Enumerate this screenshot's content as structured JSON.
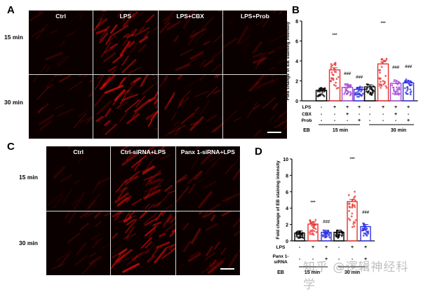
{
  "panels": {
    "A": {
      "letter": "A",
      "columns": [
        "Ctrl",
        "LPS",
        "LPS+CBX",
        "LPS+Prob"
      ],
      "rows": [
        "15 min",
        "30 min"
      ],
      "intensity": [
        [
          0.15,
          0.75,
          0.35,
          0.25
        ],
        [
          0.3,
          0.85,
          0.45,
          0.3
        ]
      ]
    },
    "B": {
      "letter": "B"
    },
    "C": {
      "letter": "C",
      "columns": [
        "Ctrl",
        "Ctrl-siRNA+LPS",
        "Panx 1-siRNA+LPS"
      ],
      "rows": [
        "15 min",
        "30 min"
      ],
      "intensity": [
        [
          0.15,
          0.7,
          0.3
        ],
        [
          0.25,
          0.9,
          0.45
        ]
      ]
    },
    "D": {
      "letter": "D"
    }
  },
  "watermark": "知乎 @逻辑神经科学",
  "chart_data": [
    {
      "panel": "B",
      "type": "bar",
      "ylabel": "Fold change of EB staining intensity",
      "ylim": [
        0,
        8
      ],
      "yticks": [
        0,
        2,
        4,
        6,
        8
      ],
      "categories": [
        "15 min Ctrl",
        "15 min LPS",
        "15 min LPS+CBX",
        "15 min LPS+Prob",
        "30 min Ctrl",
        "30 min LPS",
        "30 min LPS+CBX",
        "30 min LPS+Prob"
      ],
      "values": [
        1.05,
        3.1,
        1.35,
        1.15,
        1.4,
        3.7,
        1.75,
        1.8
      ],
      "colors": [
        "#000000",
        "#e8302e",
        "#a348d6",
        "#2f2fe0",
        "#000000",
        "#e8302e",
        "#a348d6",
        "#2f2fe0"
      ],
      "annotations": [
        "",
        "***",
        "###",
        "###",
        "",
        "***",
        "###",
        "###"
      ],
      "conditions": {
        "LPS": [
          "-",
          "+",
          "+",
          "+",
          "-",
          "+",
          "+",
          "+"
        ],
        "CBX": [
          "-",
          "-",
          "+",
          "-",
          "-",
          "-",
          "+",
          "-"
        ],
        "Prob": [
          "-",
          "-",
          "-",
          "+",
          "-",
          "-",
          "-",
          "+"
        ]
      },
      "group_label": "EB",
      "groups": [
        "15 min",
        "30 min"
      ]
    },
    {
      "panel": "D",
      "type": "bar",
      "ylabel": "Fold change of EB staining intensity",
      "ylim": [
        0,
        10
      ],
      "yticks": [
        0,
        2,
        4,
        6,
        8,
        10
      ],
      "categories": [
        "15 min Ctrl",
        "15 min Ctrl-siRNA+LPS",
        "15 min Panx1-siRNA+LPS",
        "30 min Ctrl",
        "30 min Ctrl-siRNA+LPS",
        "30 min Panx1-siRNA+LPS"
      ],
      "values": [
        0.95,
        2.05,
        1.05,
        1.05,
        4.8,
        1.75
      ],
      "colors": [
        "#000000",
        "#e8302e",
        "#2f2fe0",
        "#000000",
        "#e8302e",
        "#2f2fe0"
      ],
      "annotations": [
        "",
        "***",
        "###",
        "",
        "***",
        "###"
      ],
      "conditions": {
        "LPS": [
          "-",
          "+",
          "+",
          "-",
          "+",
          "+"
        ],
        "Panx 1-siRNA": [
          "-",
          "-",
          "+",
          "-",
          "-",
          "+"
        ]
      },
      "group_label": "EB",
      "groups": [
        "15 min",
        "30 min"
      ]
    }
  ]
}
